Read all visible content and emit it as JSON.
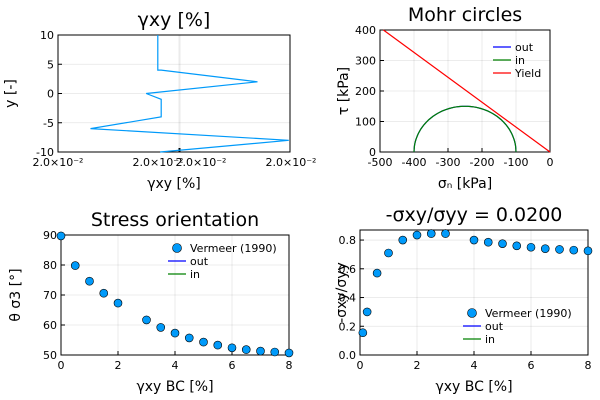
{
  "chart_data": [
    {
      "type": "line",
      "title": "γxy [%]",
      "xlabel": "γxy [%]",
      "ylabel": "y [-]",
      "xlim": [
        0,
        1
      ],
      "ylim": [
        -10,
        10
      ],
      "x_tick_labels": [
        "2.0×10⁻²",
        "2.0×10⁻²",
        "2.0×10⁻²",
        "2.0×10⁻²"
      ],
      "y_ticks": [
        10,
        5,
        0,
        -5,
        -10
      ],
      "grid": true,
      "color": "#009AFA",
      "series": [
        {
          "x": [
            0.43,
            0.43,
            0.445,
            0.86,
            0.38,
            0.445,
            0.445,
            0.14,
            0.995,
            0.44
          ],
          "y": [
            10,
            4,
            4,
            2,
            0,
            -1,
            -4,
            -6,
            -8,
            -10
          ]
        }
      ]
    },
    {
      "type": "line",
      "title": "Mohr circles",
      "xlabel": "σₙ [kPa]",
      "ylabel": "τ [kPa]",
      "xlim": [
        -500,
        0
      ],
      "ylim": [
        0,
        400
      ],
      "x_ticks": [
        -500,
        -400,
        -300,
        -200,
        -100,
        0
      ],
      "y_ticks": [
        0,
        100,
        200,
        300,
        400
      ],
      "grid": true,
      "legend_position": "top-right",
      "legend": [
        "out",
        "in",
        "Yield"
      ],
      "colors": [
        "#0000FF",
        "#008000",
        "#FF0000"
      ],
      "circle": {
        "center": -250,
        "radius": 150
      },
      "yield_line": {
        "x": [
          -490,
          0
        ],
        "y": [
          400,
          0
        ]
      }
    },
    {
      "type": "scatter",
      "title": "Stress orientation",
      "xlabel": "γxy BC [%]",
      "ylabel": "θ σ3 [°]",
      "xlim": [
        0,
        8
      ],
      "ylim": [
        50,
        90
      ],
      "x_ticks": [
        0,
        2,
        4,
        6,
        8
      ],
      "y_ticks": [
        50,
        60,
        70,
        80,
        90
      ],
      "grid": true,
      "legend_position": "top-right",
      "legend": [
        "Vermeer (1990)",
        "out",
        "in"
      ],
      "colors": [
        "#009AFA",
        "#0000FF",
        "#008000"
      ],
      "points": {
        "x": [
          0,
          0.5,
          1,
          1.5,
          2,
          3,
          3.5,
          4,
          4.5,
          5,
          5.5,
          6,
          6.5,
          7,
          7.5,
          8
        ],
        "y": [
          89.7,
          79.8,
          74.6,
          70.6,
          67.3,
          61.7,
          59.2,
          57.3,
          55.7,
          54.3,
          53.3,
          52.4,
          51.8,
          51.3,
          51.0,
          50.7
        ]
      }
    },
    {
      "type": "scatter",
      "title": "-σxy/σyy = 0.0200",
      "xlabel": "γxy BC [%]",
      "ylabel": "-σxy/σyy",
      "xlim": [
        0,
        8
      ],
      "ylim": [
        0,
        0.87
      ],
      "x_ticks": [
        0,
        2,
        4,
        6,
        8
      ],
      "y_ticks": [
        0.0,
        0.2,
        0.4,
        0.6,
        0.8
      ],
      "grid": true,
      "legend_position": "bottom-right",
      "legend": [
        "Vermeer (1990)",
        "out",
        "in"
      ],
      "colors": [
        "#009AFA",
        "#0000FF",
        "#008000"
      ],
      "points": {
        "x": [
          0.1,
          0.25,
          0.6,
          1,
          1.5,
          2,
          2.5,
          3,
          4,
          4.5,
          5,
          5.5,
          6,
          6.5,
          7,
          7.5,
          8
        ],
        "y": [
          0.155,
          0.3,
          0.57,
          0.71,
          0.8,
          0.835,
          0.845,
          0.845,
          0.8,
          0.785,
          0.775,
          0.76,
          0.75,
          0.74,
          0.735,
          0.73,
          0.725
        ]
      }
    }
  ]
}
